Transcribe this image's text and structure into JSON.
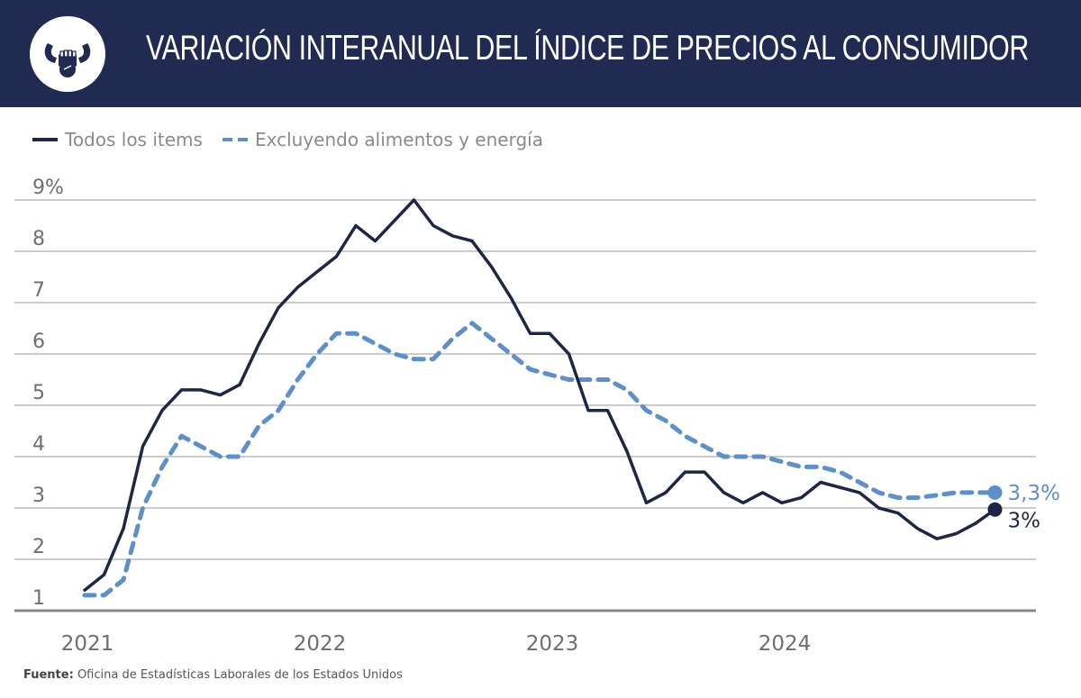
{
  "header": {
    "title": "VARIACIÓN INTERANUAL DEL ÍNDICE DE PRECIOS AL CONSUMIDOR",
    "logo_icon": "bull-fist-logo-icon"
  },
  "legend": {
    "items": [
      {
        "label": "Todos los items",
        "style": "solid",
        "color": "#1e2546"
      },
      {
        "label": "Excluyendo alimentos y energía",
        "style": "dashed",
        "color": "#5d8fcb"
      }
    ]
  },
  "footer": {
    "source_label": "Fuente:",
    "source_text": "Oficina de Estadísticas Laborales de los Estados Unidos"
  },
  "chart_data": {
    "type": "line",
    "title": "VARIACIÓN INTERANUAL DEL ÍNDICE DE PRECIOS AL CONSUMIDOR",
    "xlabel": "",
    "ylabel": "",
    "x_period": "monthly, Jan 2021 – Dec 2024",
    "x_ticks": [
      {
        "label": "2021",
        "index": 0
      },
      {
        "label": "2022",
        "index": 12
      },
      {
        "label": "2023",
        "index": 24
      },
      {
        "label": "2024",
        "index": 36
      }
    ],
    "y_ticks": [
      "1",
      "2",
      "3",
      "4",
      "5",
      "6",
      "7",
      "8",
      "9%"
    ],
    "y_tick_values": [
      1,
      2,
      3,
      4,
      5,
      6,
      7,
      8,
      9
    ],
    "ylim": [
      1,
      9
    ],
    "grid": true,
    "legend_position": "top-left",
    "series": [
      {
        "name": "Todos los items",
        "style": "solid",
        "color": "#1e2546",
        "values": [
          1.4,
          1.7,
          2.6,
          4.2,
          4.9,
          5.3,
          5.3,
          5.2,
          5.4,
          6.2,
          6.9,
          7.3,
          7.6,
          7.9,
          8.5,
          8.2,
          8.6,
          9.0,
          8.5,
          8.3,
          8.2,
          7.7,
          7.1,
          6.4,
          6.4,
          6.0,
          4.9,
          4.9,
          4.1,
          3.1,
          3.3,
          3.7,
          3.7,
          3.3,
          3.1,
          3.3,
          3.1,
          3.2,
          3.5,
          3.4,
          3.3,
          3.0,
          2.9,
          2.6,
          2.4,
          2.5,
          2.7,
          2.97
        ],
        "end_label": "3%"
      },
      {
        "name": "Excluyendo alimentos y energía",
        "style": "dashed",
        "color": "#5d8fcb",
        "values": [
          1.3,
          1.3,
          1.6,
          3.0,
          3.8,
          4.4,
          4.2,
          4.0,
          4.0,
          4.6,
          4.9,
          5.5,
          6.0,
          6.4,
          6.4,
          6.2,
          6.0,
          5.9,
          5.9,
          6.3,
          6.6,
          6.3,
          6.0,
          5.7,
          5.6,
          5.5,
          5.5,
          5.5,
          5.3,
          4.9,
          4.7,
          4.4,
          4.2,
          4.0,
          4.0,
          4.0,
          3.9,
          3.8,
          3.8,
          3.7,
          3.5,
          3.3,
          3.2,
          3.2,
          3.25,
          3.3,
          3.3,
          3.3
        ],
        "end_label": "3,3%"
      }
    ]
  }
}
